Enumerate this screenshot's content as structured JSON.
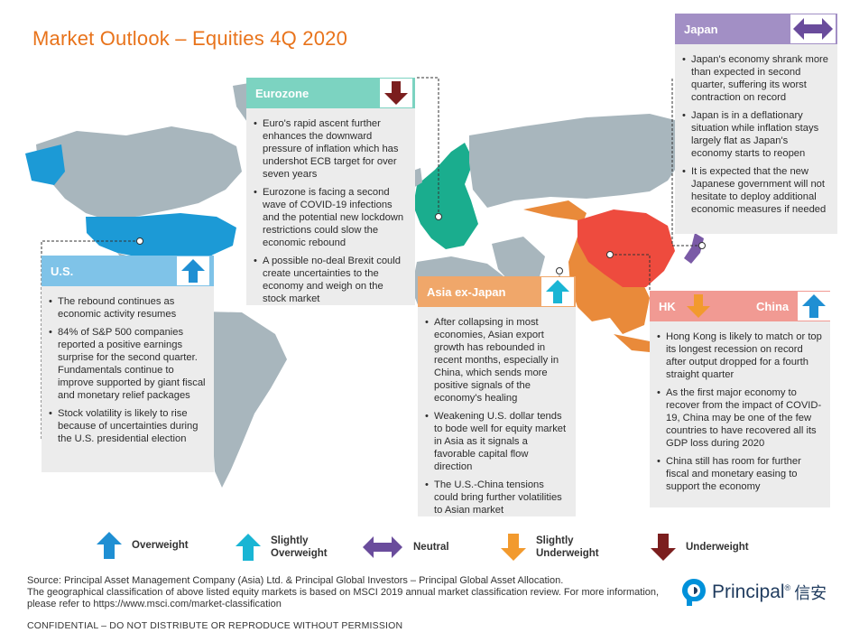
{
  "title": "Market Outlook – Equities 4Q 2020",
  "colors": {
    "title": "#e8731b",
    "overweight": "#1f8fd3",
    "slightly_overweight": "#19b5d4",
    "neutral": "#6a4c9c",
    "slightly_underweight": "#f29a2e",
    "underweight": "#7b1e1e",
    "us_region": "#1c9ad6",
    "eurozone_region": "#1aad8e",
    "asia_region": "#e98a3a",
    "china_region": "#ee4b3e",
    "japan_region": "#7a5aa6",
    "other_land": "#a8b6bd"
  },
  "panels": {
    "us": {
      "name": "U.S.",
      "rating": "overweight",
      "header_color": "#7fc3e8",
      "bullets": [
        "The rebound continues as economic activity resumes",
        "84% of S&P 500 companies reported a positive earnings surprise for the second quarter. Fundamentals continue to improve supported by giant fiscal and monetary relief packages",
        "Stock volatility is likely to rise because of uncertainties during the U.S. presidential election"
      ]
    },
    "eurozone": {
      "name": "Eurozone",
      "rating": "underweight",
      "header_color": "#7cd3c1",
      "bullets": [
        "Euro's rapid ascent further enhances the downward pressure of inflation which has undershot ECB target for over seven years",
        "Eurozone is facing a second wave of COVID-19 infections and the potential new lockdown restrictions could slow the economic rebound",
        "A possible no-deal Brexit could create uncertainties to the economy and weigh on the stock market"
      ]
    },
    "asia": {
      "name": "Asia ex-Japan",
      "rating": "slightly_overweight",
      "header_color": "#f0a76a",
      "bullets": [
        "After collapsing in most economies, Asian export growth has rebounded in recent months, especially in China, which sends more positive signals of the economy's healing",
        "Weakening U.S. dollar tends to bode well for equity market in Asia as it signals a favorable capital flow direction",
        "The U.S.-China tensions could bring further volatilities to Asian market"
      ]
    },
    "japan": {
      "name": "Japan",
      "rating": "neutral",
      "header_color": "#a28fc5",
      "bullets": [
        "Japan's economy shrank more than expected in second quarter, suffering its worst contraction on record",
        "Japan is in a deflationary situation while inflation stays largely flat as Japan's economy starts to reopen",
        "It is expected that the new Japanese government will not hesitate to deploy additional economic measures if needed"
      ]
    },
    "hk_china": {
      "hk_name": "HK",
      "hk_rating": "slightly_underweight",
      "china_name": "China",
      "china_rating": "overweight",
      "header_color": "#f19a93",
      "bullets": [
        "Hong Kong is likely to match or top its longest recession on record after output dropped for a fourth straight quarter",
        "As the first major economy to recover from the impact of COVID-19, China may be one of the few countries to have recovered all its GDP loss during 2020",
        "China still has room for further fiscal and monetary easing to support the economy"
      ]
    }
  },
  "legend": [
    {
      "rating": "overweight",
      "label": "Overweight"
    },
    {
      "rating": "slightly_overweight",
      "label": "Slightly Overweight"
    },
    {
      "rating": "neutral",
      "label": "Neutral"
    },
    {
      "rating": "slightly_underweight",
      "label": "Slightly Underweight"
    },
    {
      "rating": "underweight",
      "label": "Underweight"
    }
  ],
  "footer": {
    "source": "Source: Principal Asset Management Company (Asia) Ltd. & Principal Global Investors – Principal Global Asset Allocation.",
    "classification": "The geographical classification of above listed equity markets is based on MSCI 2019 annual market classification review. For more information, please refer to https://www.msci.com/market-classification",
    "confidential": "CONFIDENTIAL – DO NOT DISTRIBUTE OR REPRODUCE WITHOUT PERMISSION",
    "logo_text": "Principal",
    "logo_reg": "®",
    "logo_cjk": "信安"
  }
}
